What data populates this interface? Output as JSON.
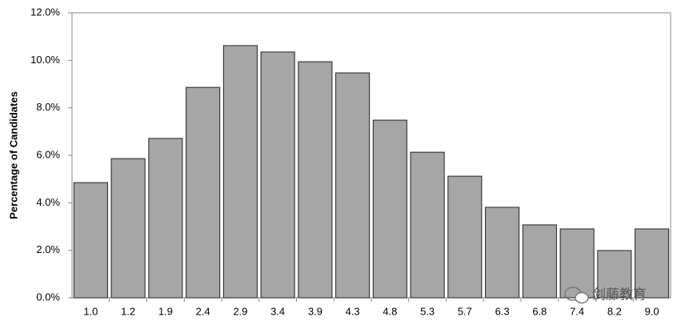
{
  "chart_data": {
    "type": "bar",
    "y_label": "Percentage of Candidates",
    "categories": [
      "1.0",
      "1.2",
      "1.9",
      "2.4",
      "2.9",
      "3.4",
      "3.9",
      "4.3",
      "4.8",
      "5.3",
      "5.7",
      "6.3",
      "6.8",
      "7.4",
      "8.2",
      "9.0"
    ],
    "values": [
      4.85,
      5.86,
      6.71,
      8.86,
      10.62,
      10.35,
      9.94,
      9.47,
      7.48,
      6.13,
      5.12,
      3.81,
      3.07,
      2.9,
      1.99,
      2.9
    ],
    "color": "#a6a6a6",
    "ylim": [
      0,
      12
    ],
    "yticks": [
      {
        "value": 0,
        "label": "0.0%"
      },
      {
        "value": 2,
        "label": "2.0%"
      },
      {
        "value": 4,
        "label": "4.0%"
      },
      {
        "value": 6,
        "label": "6.0%"
      },
      {
        "value": 8,
        "label": "8.0%"
      },
      {
        "value": 10,
        "label": "10.0%"
      },
      {
        "value": 12,
        "label": "12.0%"
      }
    ],
    "grid": false,
    "watermark": "剑藤教育"
  }
}
